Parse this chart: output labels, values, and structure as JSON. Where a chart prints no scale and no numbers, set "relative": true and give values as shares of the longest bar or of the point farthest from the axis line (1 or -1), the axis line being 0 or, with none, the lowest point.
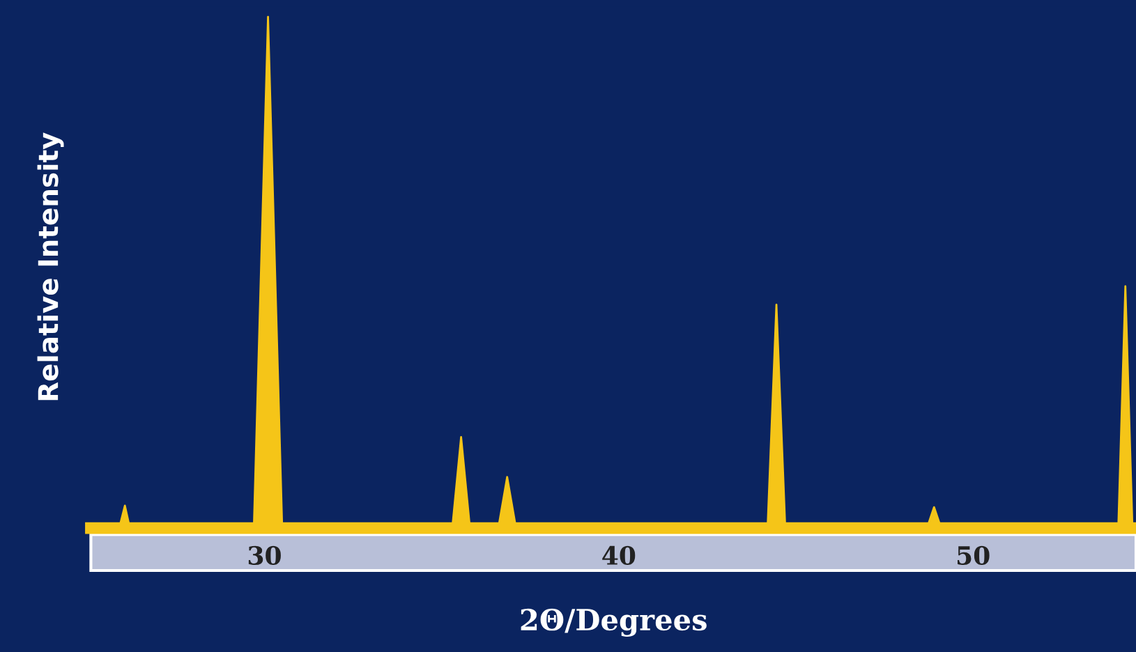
{
  "chart_data": {
    "type": "area",
    "xlabel": "2Θ/Degrees",
    "ylabel": "Relative Intensity",
    "relative": true,
    "color": "#f5c518",
    "x": [
      25.1,
      25.9,
      26.06,
      26.2,
      29.7,
      30.1,
      30.5,
      35.3,
      35.55,
      35.8,
      36.6,
      36.85,
      37.1,
      44.2,
      44.45,
      44.7,
      48.7,
      48.9,
      49.1,
      54.1,
      54.3,
      54.5
    ],
    "values": [
      0,
      0,
      0.044,
      0,
      0,
      1,
      0,
      0,
      0.178,
      0,
      0,
      0.1,
      0,
      0,
      0.437,
      0,
      0,
      0.041,
      0,
      0,
      0.473,
      0
    ],
    "xlim": [
      25.1,
      54.6
    ],
    "xticks": [
      30,
      40,
      50
    ]
  }
}
